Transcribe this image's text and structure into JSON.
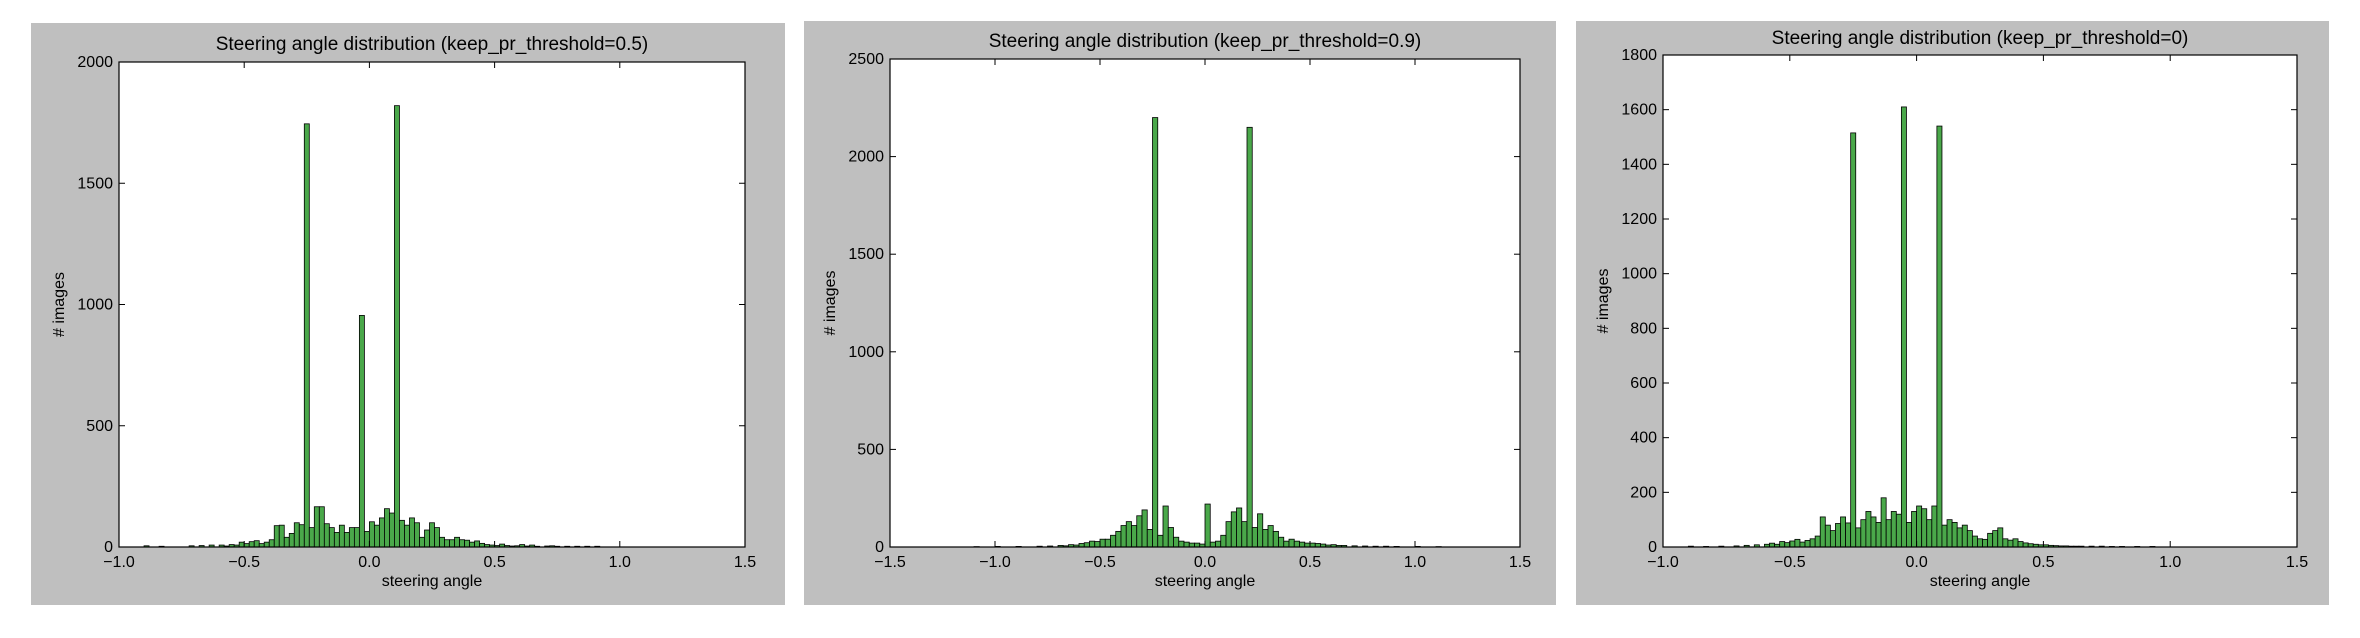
{
  "charts": [
    {
      "type": "bar",
      "title": "Steering angle distribution (keep_pr_threshold=0.5)",
      "xlabel": "steering angle",
      "ylabel": "# images",
      "xlim": [
        -1.0,
        1.5
      ],
      "ylim": [
        0,
        2000
      ],
      "xticks": [
        "−1.0",
        "−0.5",
        "0.0",
        "0.5",
        "1.0",
        "1.5"
      ],
      "xtick_values": [
        -1.0,
        -0.5,
        0.0,
        0.5,
        1.0,
        1.5
      ],
      "yticks": [
        "0",
        "500",
        "1000",
        "1500",
        "2000"
      ],
      "ytick_values": [
        0,
        500,
        1000,
        1500,
        2000
      ],
      "bar_color": "#4aa84a",
      "bin_width": 0.02,
      "bin_starts": [
        -0.9,
        -0.84,
        -0.72,
        -0.68,
        -0.64,
        -0.6,
        -0.58,
        -0.56,
        -0.54,
        -0.52,
        -0.5,
        -0.48,
        -0.46,
        -0.44,
        -0.42,
        -0.4,
        -0.38,
        -0.36,
        -0.34,
        -0.32,
        -0.3,
        -0.28,
        -0.26,
        -0.24,
        -0.22,
        -0.2,
        -0.18,
        -0.16,
        -0.14,
        -0.12,
        -0.1,
        -0.08,
        -0.06,
        -0.04,
        -0.02,
        0.0,
        0.02,
        0.04,
        0.06,
        0.08,
        0.1,
        0.12,
        0.14,
        0.16,
        0.18,
        0.2,
        0.22,
        0.24,
        0.26,
        0.28,
        0.3,
        0.32,
        0.34,
        0.36,
        0.38,
        0.4,
        0.42,
        0.44,
        0.46,
        0.48,
        0.5,
        0.52,
        0.54,
        0.56,
        0.58,
        0.6,
        0.62,
        0.64,
        0.66,
        0.7,
        0.72,
        0.74,
        0.78,
        0.82,
        0.86,
        0.9
      ],
      "values": [
        5,
        3,
        5,
        6,
        8,
        8,
        4,
        10,
        8,
        20,
        14,
        22,
        26,
        14,
        20,
        30,
        88,
        90,
        40,
        56,
        100,
        92,
        1745,
        80,
        166,
        166,
        96,
        80,
        60,
        90,
        60,
        80,
        80,
        955,
        64,
        104,
        90,
        120,
        158,
        140,
        1820,
        110,
        90,
        120,
        100,
        40,
        70,
        100,
        80,
        40,
        30,
        30,
        40,
        30,
        28,
        20,
        25,
        15,
        10,
        8,
        6,
        12,
        6,
        4,
        5,
        10,
        4,
        8,
        3,
        4,
        5,
        3,
        3,
        3,
        3,
        3
      ]
    },
    {
      "type": "bar",
      "title": "Steering angle distribution (keep_pr_threshold=0.9)",
      "xlabel": "steering angle",
      "ylabel": "# images",
      "xlim": [
        -1.5,
        1.5
      ],
      "ylim": [
        0,
        2500
      ],
      "xticks": [
        "−1.5",
        "−1.0",
        "−0.5",
        "0.0",
        "0.5",
        "1.0",
        "1.5"
      ],
      "xtick_values": [
        -1.5,
        -1.0,
        -0.5,
        0.0,
        0.5,
        1.0,
        1.5
      ],
      "yticks": [
        "0",
        "500",
        "1000",
        "1500",
        "2000",
        "2500"
      ],
      "ytick_values": [
        0,
        500,
        1000,
        1500,
        2000,
        2500
      ],
      "bar_color": "#4aa84a",
      "bin_width": 0.025,
      "bin_starts": [
        -1.1,
        -1.0,
        -0.9,
        -0.8,
        -0.75,
        -0.7,
        -0.675,
        -0.65,
        -0.625,
        -0.6,
        -0.575,
        -0.55,
        -0.525,
        -0.5,
        -0.475,
        -0.45,
        -0.425,
        -0.4,
        -0.375,
        -0.35,
        -0.325,
        -0.3,
        -0.275,
        -0.25,
        -0.225,
        -0.2,
        -0.175,
        -0.15,
        -0.125,
        -0.1,
        -0.075,
        -0.05,
        -0.025,
        0.0,
        0.025,
        0.05,
        0.075,
        0.1,
        0.125,
        0.15,
        0.175,
        0.2,
        0.225,
        0.25,
        0.275,
        0.3,
        0.325,
        0.35,
        0.375,
        0.4,
        0.425,
        0.45,
        0.475,
        0.5,
        0.525,
        0.55,
        0.575,
        0.6,
        0.625,
        0.65,
        0.7,
        0.75,
        0.8,
        0.85,
        0.9,
        1.0,
        1.1
      ],
      "values": [
        2,
        3,
        3,
        4,
        5,
        8,
        6,
        12,
        10,
        18,
        22,
        30,
        28,
        40,
        40,
        60,
        80,
        110,
        130,
        110,
        160,
        190,
        90,
        2200,
        60,
        210,
        100,
        50,
        30,
        25,
        20,
        20,
        15,
        220,
        25,
        30,
        60,
        130,
        180,
        200,
        130,
        2150,
        100,
        170,
        90,
        110,
        80,
        50,
        30,
        40,
        30,
        25,
        20,
        20,
        18,
        15,
        10,
        12,
        8,
        8,
        6,
        5,
        4,
        4,
        3,
        3,
        2
      ]
    },
    {
      "type": "bar",
      "title": "Steering angle distribution (keep_pr_threshold=0)",
      "xlabel": "steering angle",
      "ylabel": "# images",
      "xlim": [
        -1.0,
        1.5
      ],
      "ylim": [
        0,
        1800
      ],
      "xticks": [
        "−1.0",
        "−0.5",
        "0.0",
        "0.5",
        "1.0",
        "1.5"
      ],
      "xtick_values": [
        -1.0,
        -0.5,
        0.0,
        0.5,
        1.0,
        1.5
      ],
      "yticks": [
        "0",
        "200",
        "400",
        "600",
        "800",
        "1000",
        "1200",
        "1400",
        "1600",
        "1800"
      ],
      "ytick_values": [
        0,
        200,
        400,
        600,
        800,
        1000,
        1200,
        1400,
        1600,
        1800
      ],
      "bar_color": "#4aa84a",
      "bin_width": 0.02,
      "bin_starts": [
        -0.9,
        -0.84,
        -0.78,
        -0.72,
        -0.68,
        -0.64,
        -0.6,
        -0.58,
        -0.56,
        -0.54,
        -0.52,
        -0.5,
        -0.48,
        -0.46,
        -0.44,
        -0.42,
        -0.4,
        -0.38,
        -0.36,
        -0.34,
        -0.32,
        -0.3,
        -0.28,
        -0.26,
        -0.24,
        -0.22,
        -0.2,
        -0.18,
        -0.16,
        -0.14,
        -0.12,
        -0.1,
        -0.08,
        -0.06,
        -0.04,
        -0.02,
        0.0,
        0.02,
        0.04,
        0.06,
        0.08,
        0.1,
        0.12,
        0.14,
        0.16,
        0.18,
        0.2,
        0.22,
        0.24,
        0.26,
        0.28,
        0.3,
        0.32,
        0.34,
        0.36,
        0.38,
        0.4,
        0.42,
        0.44,
        0.46,
        0.48,
        0.5,
        0.52,
        0.54,
        0.56,
        0.58,
        0.6,
        0.62,
        0.64,
        0.68,
        0.72,
        0.76,
        0.8,
        0.86,
        0.92
      ],
      "values": [
        3,
        2,
        3,
        4,
        6,
        8,
        10,
        14,
        10,
        20,
        16,
        22,
        28,
        18,
        24,
        30,
        40,
        110,
        80,
        60,
        86,
        110,
        88,
        1515,
        70,
        100,
        130,
        110,
        90,
        180,
        100,
        130,
        120,
        1610,
        90,
        130,
        150,
        140,
        100,
        150,
        1540,
        80,
        100,
        90,
        70,
        80,
        60,
        40,
        30,
        28,
        50,
        60,
        70,
        30,
        25,
        30,
        20,
        15,
        12,
        10,
        8,
        8,
        6,
        5,
        4,
        4,
        3,
        3,
        3,
        3,
        3,
        2,
        2,
        2,
        2
      ]
    }
  ]
}
